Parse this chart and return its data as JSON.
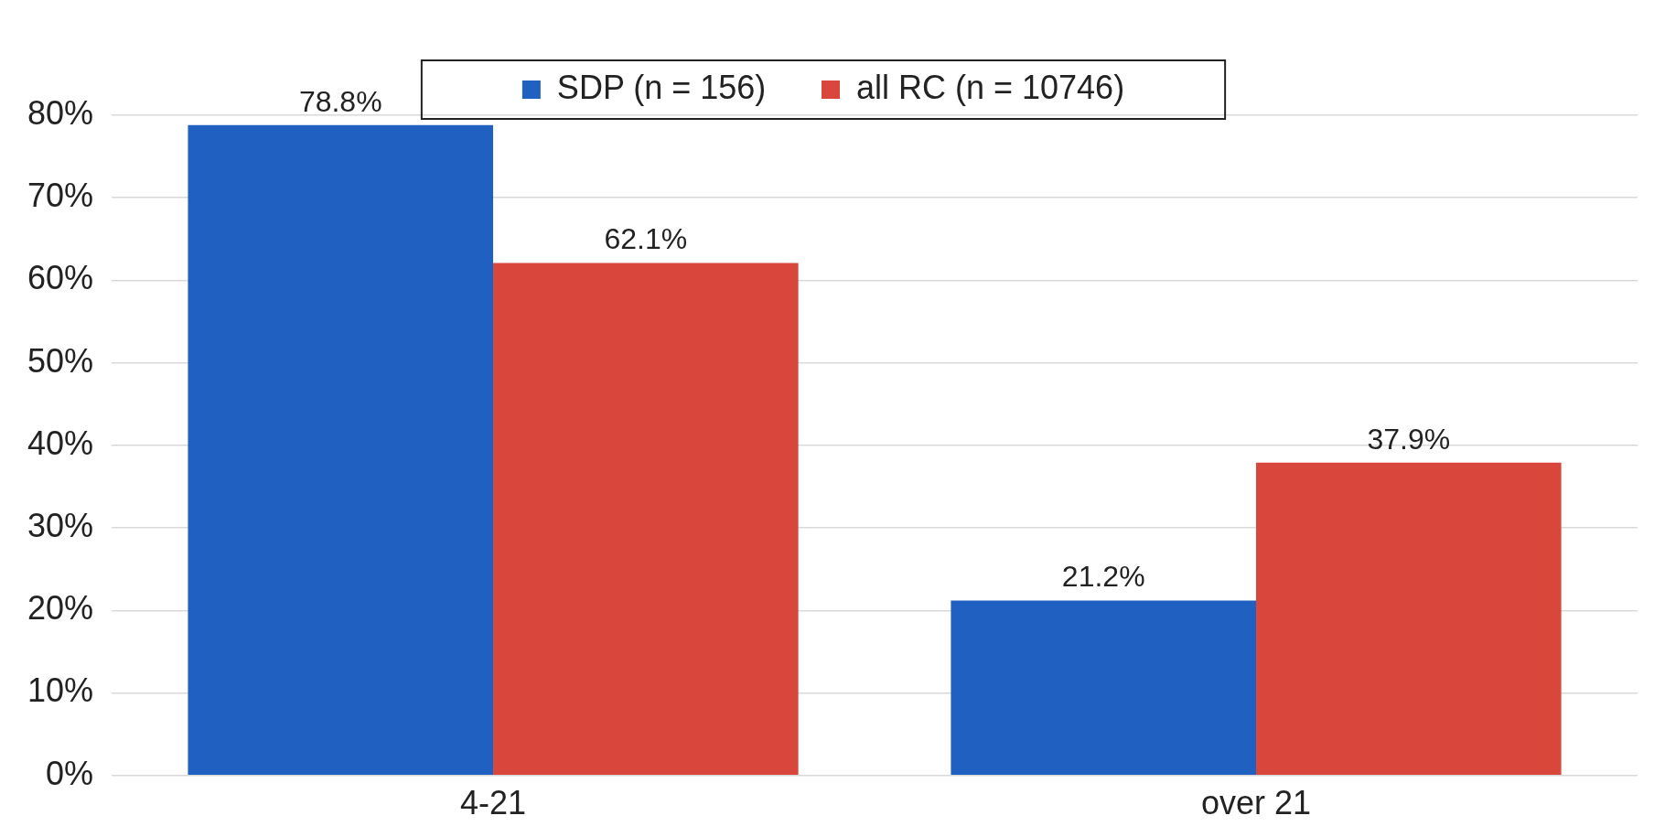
{
  "chart_data": {
    "type": "bar",
    "categories": [
      "4-21",
      "over 21"
    ],
    "series": [
      {
        "name": "SDP (n = 156)",
        "color": "#2060c0",
        "values": [
          78.8,
          21.2
        ]
      },
      {
        "name": "all RC (n = 10746)",
        "color": "#d8463c",
        "values": [
          62.1,
          37.9
        ]
      }
    ],
    "value_labels": [
      [
        "78.8%",
        "21.2%"
      ],
      [
        "62.1%",
        "37.9%"
      ]
    ],
    "ylim": [
      0,
      80
    ],
    "yticks": [
      {
        "value": 0,
        "label": "0%"
      },
      {
        "value": 10,
        "label": "10%"
      },
      {
        "value": 20,
        "label": "20%"
      },
      {
        "value": 30,
        "label": "30%"
      },
      {
        "value": 40,
        "label": "40%"
      },
      {
        "value": 50,
        "label": "50%"
      },
      {
        "value": 60,
        "label": "60%"
      },
      {
        "value": 70,
        "label": "70%"
      },
      {
        "value": 80,
        "label": "80%"
      }
    ],
    "grid": "y",
    "legend": "top"
  }
}
